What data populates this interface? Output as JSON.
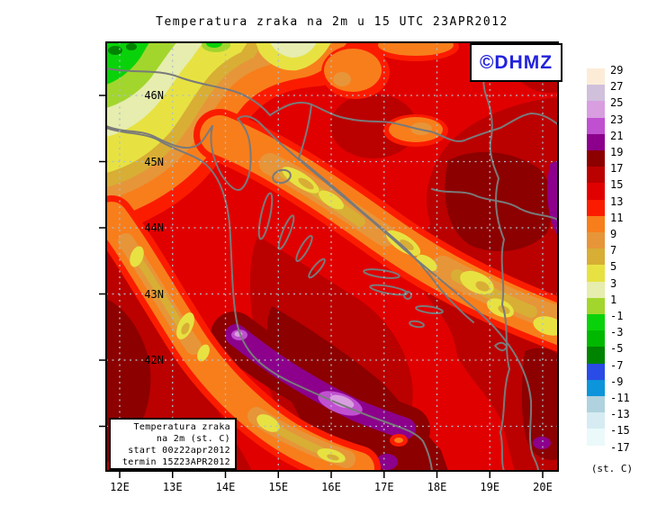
{
  "title": "Temperatura zraka na 2m u 15 UTC 23APR2012",
  "watermark": "©DHMZ",
  "legend_box": {
    "line1": "Temperatura zraka",
    "line2": "na 2m (st. C)",
    "line3": "start 00z22apr2012",
    "line4": "termin 15Z23APR2012"
  },
  "axes": {
    "lat_labels": [
      "46N",
      "45N",
      "44N",
      "43N",
      "42N",
      "41N"
    ],
    "lon_labels": [
      "12E",
      "13E",
      "14E",
      "15E",
      "16E",
      "17E",
      "18E",
      "19E",
      "20E"
    ]
  },
  "colorbar": {
    "unit": "(st. C)",
    "tick_labels": [
      "29",
      "27",
      "25",
      "23",
      "21",
      "19",
      "17",
      "15",
      "13",
      "11",
      "9",
      "7",
      "5",
      "3",
      "1",
      "-1",
      "-3",
      "-5",
      "-7",
      "-9",
      "-11",
      "-13",
      "-15",
      "-17"
    ],
    "colors": [
      "#fcecd7",
      "#d0c0dc",
      "#d89ee0",
      "#c050d0",
      "#8c008c",
      "#8c0000",
      "#bb0000",
      "#e10000",
      "#fb1c00",
      "#f87e1b",
      "#e79539",
      "#d8ae35",
      "#e7e242",
      "#e6edae",
      "#a2d62c",
      "#0ad20a",
      "#00b800",
      "#008300",
      "#2a4be6",
      "#0c95da",
      "#b0d2de",
      "#d6ecf2",
      "#ebf9fb"
    ]
  }
}
